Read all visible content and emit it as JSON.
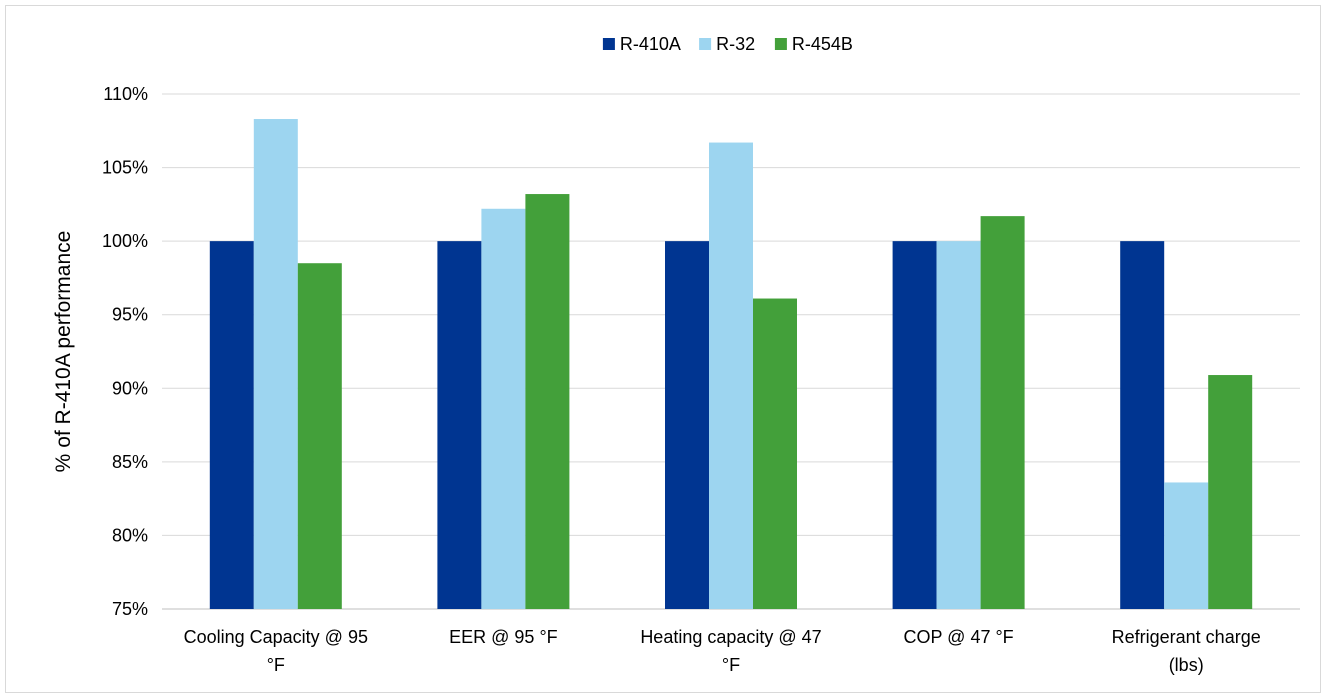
{
  "chart_data": {
    "type": "bar",
    "title": "",
    "xlabel": "",
    "ylabel": "% of R-410A performance",
    "ylim": [
      75,
      110
    ],
    "y_ticks": [
      75,
      80,
      85,
      90,
      95,
      100,
      105,
      110
    ],
    "y_tick_suffix": "%",
    "grid": true,
    "legend_position": "top-center",
    "categories": [
      [
        "Cooling Capacity @ 95",
        "°F"
      ],
      [
        "EER @ 95 °F"
      ],
      [
        "Heating capacity @ 47",
        "°F"
      ],
      [
        "COP @ 47 °F"
      ],
      [
        "Refrigerant charge",
        "(lbs)"
      ]
    ],
    "series": [
      {
        "name": "R-410A",
        "color": "#003591",
        "values": [
          100,
          100,
          100,
          100,
          100
        ]
      },
      {
        "name": "R-32",
        "color": "#9dd5f0",
        "values": [
          108.3,
          102.2,
          106.7,
          100.0,
          83.6
        ]
      },
      {
        "name": "R-454B",
        "color": "#43a03a",
        "values": [
          98.5,
          103.2,
          96.1,
          101.7,
          90.9
        ]
      }
    ]
  }
}
